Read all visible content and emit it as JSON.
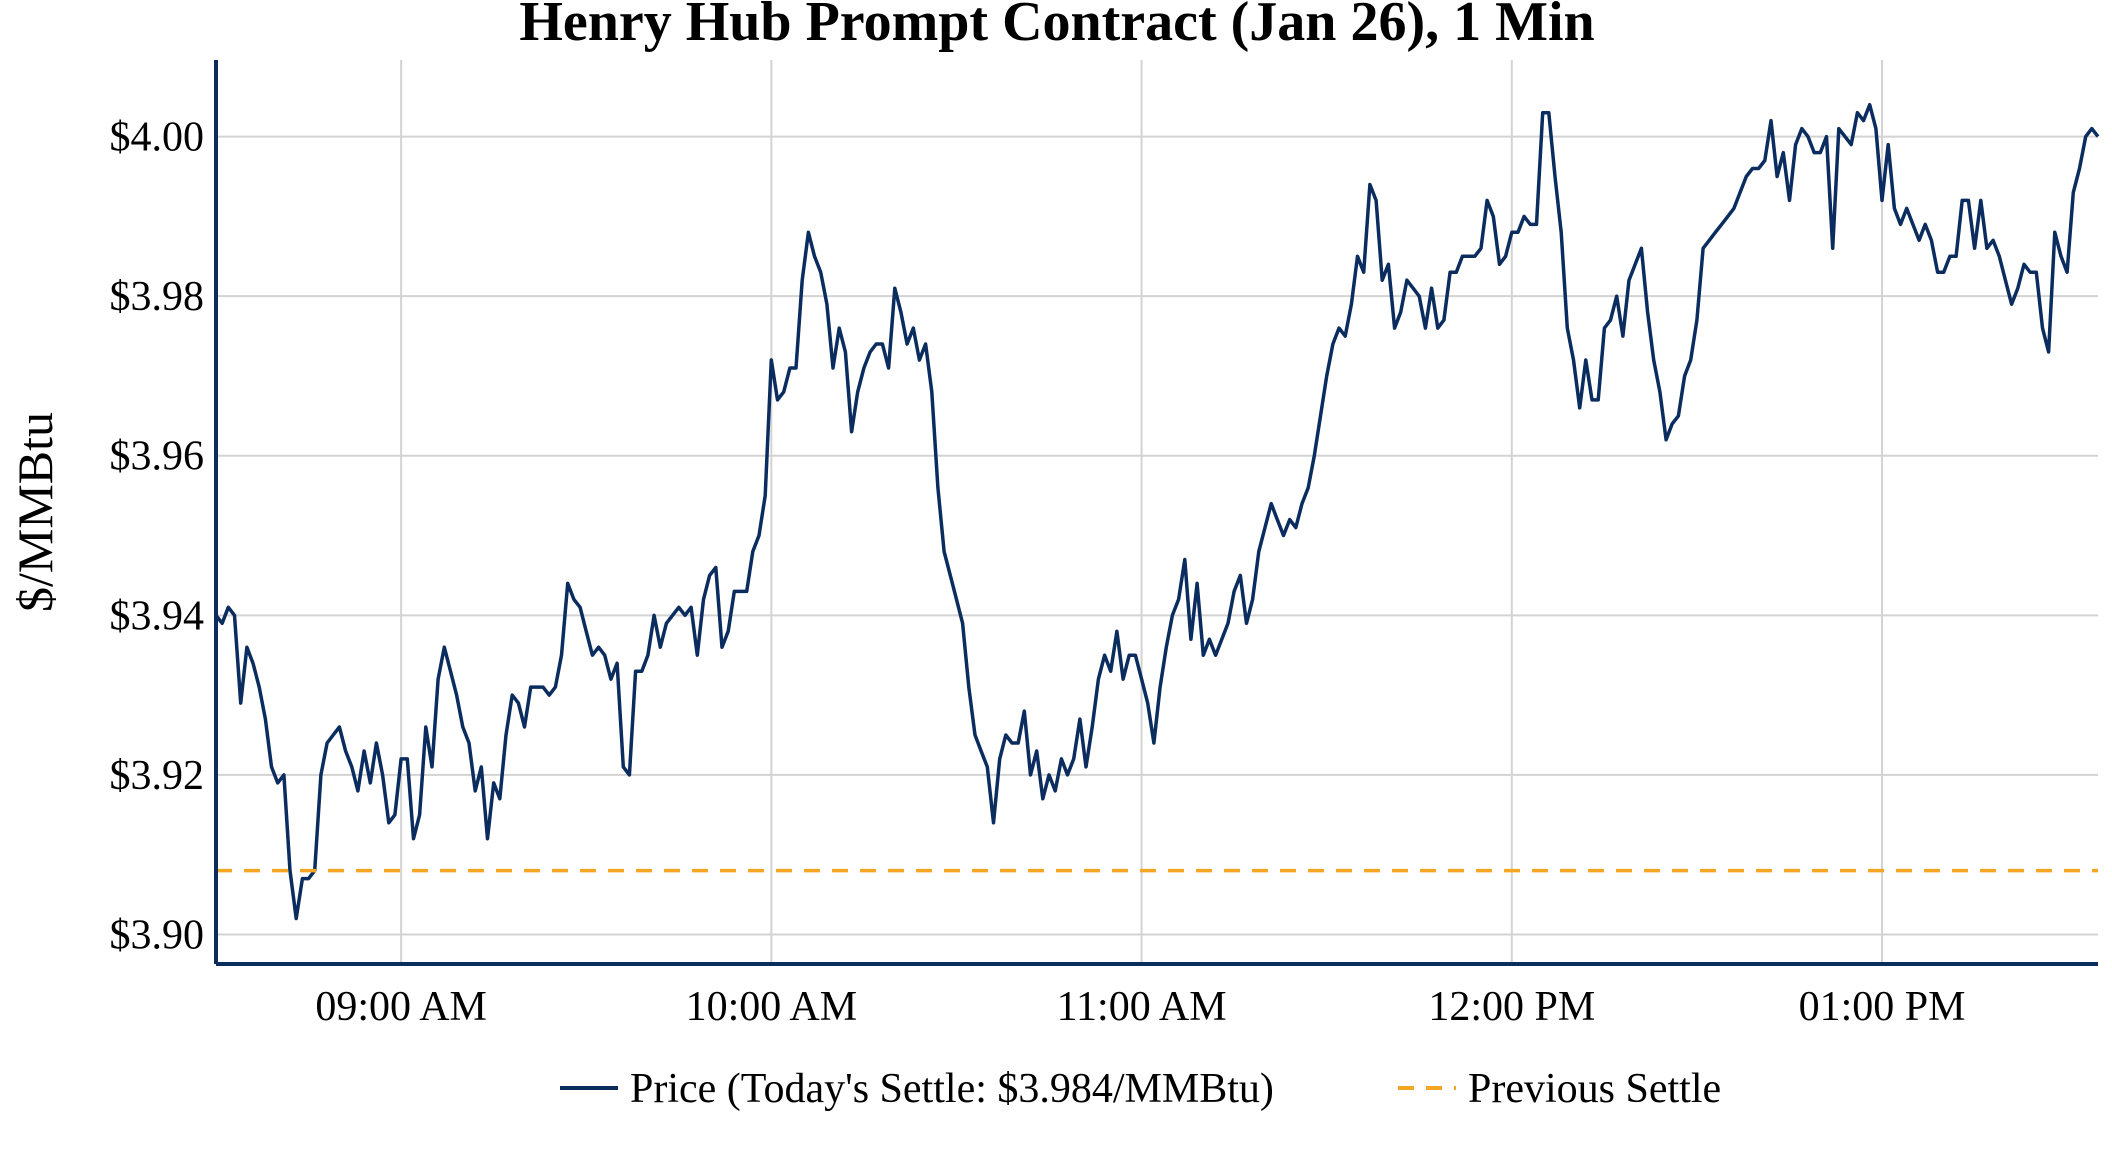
{
  "chart_data": {
    "type": "line",
    "title": "Henry Hub Prompt Contract (Jan 26), 1 Min",
    "xlabel": "",
    "ylabel": "$/MMBtu",
    "x_ticks": [
      "09:00 AM",
      "10:00 AM",
      "11:00 AM",
      "12:00 PM",
      "01:00 PM"
    ],
    "y_ticks": [
      "$3.90",
      "$3.92",
      "$3.94",
      "$3.96",
      "$3.98",
      "$4.00"
    ],
    "y_tick_values": [
      3.9,
      3.92,
      3.94,
      3.96,
      3.98,
      4.0
    ],
    "x_tick_times": [
      "09:00",
      "10:00",
      "11:00",
      "12:00",
      "13:00"
    ],
    "xlim": [
      "08:30",
      "13:35"
    ],
    "ylim": [
      3.8963,
      4.0096
    ],
    "grid": true,
    "legend_position": "bottom-center",
    "series": [
      {
        "name": "Price (Today's Settle: $3.984/MMBtu)",
        "color": "#0b2c5e",
        "style": "solid",
        "x": [
          "08:30",
          "08:31",
          "08:32",
          "08:33",
          "08:34",
          "08:35",
          "08:36",
          "08:37",
          "08:38",
          "08:39",
          "08:40",
          "08:41",
          "08:42",
          "08:43",
          "08:44",
          "08:45",
          "08:46",
          "08:47",
          "08:48",
          "08:49",
          "08:50",
          "08:51",
          "08:52",
          "08:53",
          "08:54",
          "08:55",
          "08:56",
          "08:57",
          "08:58",
          "08:59",
          "09:00",
          "09:01",
          "09:02",
          "09:03",
          "09:04",
          "09:05",
          "09:06",
          "09:07",
          "09:08",
          "09:09",
          "09:10",
          "09:11",
          "09:12",
          "09:13",
          "09:14",
          "09:15",
          "09:16",
          "09:17",
          "09:18",
          "09:19",
          "09:20",
          "09:21",
          "09:22",
          "09:23",
          "09:24",
          "09:25",
          "09:26",
          "09:27",
          "09:28",
          "09:29",
          "09:30",
          "09:31",
          "09:32",
          "09:33",
          "09:34",
          "09:35",
          "09:36",
          "09:37",
          "09:38",
          "09:39",
          "09:40",
          "09:41",
          "09:42",
          "09:43",
          "09:44",
          "09:45",
          "09:46",
          "09:47",
          "09:48",
          "09:49",
          "09:50",
          "09:51",
          "09:52",
          "09:53",
          "09:54",
          "09:55",
          "09:56",
          "09:57",
          "09:58",
          "09:59",
          "10:00",
          "10:01",
          "10:02",
          "10:03",
          "10:04",
          "10:05",
          "10:06",
          "10:07",
          "10:08",
          "10:09",
          "10:10",
          "10:11",
          "10:12",
          "10:13",
          "10:14",
          "10:15",
          "10:16",
          "10:17",
          "10:18",
          "10:19",
          "10:20",
          "10:21",
          "10:22",
          "10:23",
          "10:24",
          "10:25",
          "10:26",
          "10:27",
          "10:28",
          "10:29",
          "10:30",
          "10:31",
          "10:32",
          "10:33",
          "10:34",
          "10:35",
          "10:36",
          "10:37",
          "10:38",
          "10:39",
          "10:40",
          "10:41",
          "10:42",
          "10:43",
          "10:44",
          "10:45",
          "10:46",
          "10:47",
          "10:48",
          "10:49",
          "10:50",
          "10:51",
          "10:52",
          "10:53",
          "10:54",
          "10:55",
          "10:56",
          "10:57",
          "10:58",
          "10:59",
          "11:00",
          "11:01",
          "11:02",
          "11:03",
          "11:04",
          "11:05",
          "11:06",
          "11:07",
          "11:08",
          "11:09",
          "11:10",
          "11:11",
          "11:12",
          "11:13",
          "11:14",
          "11:15",
          "11:16",
          "11:17",
          "11:18",
          "11:19",
          "11:20",
          "11:21",
          "11:22",
          "11:23",
          "11:24",
          "11:25",
          "11:26",
          "11:27",
          "11:28",
          "11:29",
          "11:30",
          "11:31",
          "11:32",
          "11:33",
          "11:34",
          "11:35",
          "11:36",
          "11:37",
          "11:38",
          "11:39",
          "11:40",
          "11:41",
          "11:42",
          "11:43",
          "11:44",
          "11:45",
          "11:46",
          "11:47",
          "11:48",
          "11:49",
          "11:50",
          "11:51",
          "11:52",
          "11:53",
          "11:54",
          "11:55",
          "11:56",
          "11:57",
          "11:58",
          "11:59",
          "12:00",
          "12:01",
          "12:02",
          "12:03",
          "12:04",
          "12:05",
          "12:06",
          "12:07",
          "12:08",
          "12:09",
          "12:10",
          "12:11",
          "12:12",
          "12:13",
          "12:14",
          "12:15",
          "12:16",
          "12:17",
          "12:18",
          "12:19",
          "12:20",
          "12:21",
          "12:22",
          "12:23",
          "12:24",
          "12:25",
          "12:26",
          "12:27",
          "12:28",
          "12:29",
          "12:30",
          "12:31",
          "12:32",
          "12:33",
          "12:34",
          "12:35",
          "12:36",
          "12:37",
          "12:38",
          "12:39",
          "12:40",
          "12:41",
          "12:42",
          "12:43",
          "12:44",
          "12:45",
          "12:46",
          "12:47",
          "12:48",
          "12:49",
          "12:50",
          "12:51",
          "12:52",
          "12:53",
          "12:54",
          "12:55",
          "12:56",
          "12:57",
          "12:58",
          "12:59",
          "13:00",
          "13:01",
          "13:02",
          "13:03",
          "13:04",
          "13:05",
          "13:06",
          "13:07",
          "13:08",
          "13:09",
          "13:10",
          "13:11",
          "13:12",
          "13:13",
          "13:14",
          "13:15",
          "13:16",
          "13:17",
          "13:18",
          "13:19",
          "13:20",
          "13:21",
          "13:22",
          "13:23",
          "13:24",
          "13:25",
          "13:26",
          "13:27",
          "13:28",
          "13:29",
          "13:30",
          "13:31",
          "13:32",
          "13:33",
          "13:34",
          "13:35"
        ],
        "y": [
          3.94,
          3.939,
          3.941,
          3.94,
          3.929,
          3.936,
          3.934,
          3.931,
          3.927,
          3.921,
          3.919,
          3.92,
          3.908,
          3.902,
          3.907,
          3.907,
          3.908,
          3.92,
          3.924,
          3.925,
          3.926,
          3.923,
          3.921,
          3.918,
          3.923,
          3.919,
          3.924,
          3.92,
          3.914,
          3.915,
          3.922,
          3.922,
          3.912,
          3.915,
          3.926,
          3.921,
          3.932,
          3.936,
          3.933,
          3.93,
          3.926,
          3.924,
          3.918,
          3.921,
          3.912,
          3.919,
          3.917,
          3.925,
          3.93,
          3.929,
          3.926,
          3.931,
          3.931,
          3.931,
          3.93,
          3.931,
          3.935,
          3.944,
          3.942,
          3.941,
          3.938,
          3.935,
          3.936,
          3.935,
          3.932,
          3.934,
          3.921,
          3.92,
          3.933,
          3.933,
          3.935,
          3.94,
          3.936,
          3.939,
          3.94,
          3.941,
          3.94,
          3.941,
          3.935,
          3.942,
          3.945,
          3.946,
          3.936,
          3.938,
          3.943,
          3.943,
          3.943,
          3.948,
          3.95,
          3.955,
          3.972,
          3.967,
          3.968,
          3.971,
          3.971,
          3.982,
          3.988,
          3.985,
          3.983,
          3.979,
          3.971,
          3.976,
          3.973,
          3.963,
          3.968,
          3.971,
          3.973,
          3.974,
          3.974,
          3.971,
          3.981,
          3.978,
          3.974,
          3.976,
          3.972,
          3.974,
          3.968,
          3.956,
          3.948,
          3.945,
          3.942,
          3.939,
          3.931,
          3.925,
          3.923,
          3.921,
          3.914,
          3.922,
          3.925,
          3.924,
          3.924,
          3.928,
          3.92,
          3.923,
          3.917,
          3.92,
          3.918,
          3.922,
          3.92,
          3.922,
          3.927,
          3.921,
          3.926,
          3.932,
          3.935,
          3.933,
          3.938,
          3.932,
          3.935,
          3.935,
          3.932,
          3.929,
          3.924,
          3.931,
          3.936,
          3.94,
          3.942,
          3.947,
          3.937,
          3.944,
          3.935,
          3.937,
          3.935,
          3.937,
          3.939,
          3.943,
          3.945,
          3.939,
          3.942,
          3.948,
          3.951,
          3.954,
          3.952,
          3.95,
          3.952,
          3.951,
          3.954,
          3.956,
          3.96,
          3.965,
          3.97,
          3.974,
          3.976,
          3.975,
          3.979,
          3.985,
          3.983,
          3.994,
          3.992,
          3.982,
          3.984,
          3.976,
          3.978,
          3.982,
          3.981,
          3.98,
          3.976,
          3.981,
          3.976,
          3.977,
          3.983,
          3.983,
          3.985,
          3.985,
          3.985,
          3.986,
          3.992,
          3.99,
          3.984,
          3.985,
          3.988,
          3.988,
          3.99,
          3.989,
          3.989,
          4.003,
          4.003,
          3.995,
          3.988,
          3.976,
          3.972,
          3.966,
          3.972,
          3.967,
          3.967,
          3.976,
          3.977,
          3.98,
          3.975,
          3.982,
          3.984,
          3.986,
          3.978,
          3.972,
          3.968,
          3.962,
          3.964,
          3.965,
          3.97,
          3.972,
          3.977,
          3.986,
          3.987,
          3.988,
          3.989,
          3.99,
          3.991,
          3.993,
          3.995,
          3.996,
          3.996,
          3.997,
          4.002,
          3.995,
          3.998,
          3.992,
          3.999,
          4.001,
          4.0,
          3.998,
          3.998,
          4.0,
          3.986,
          4.001,
          4.0,
          3.999,
          4.003,
          4.002,
          4.004,
          4.001,
          3.992,
          3.999,
          3.991,
          3.989,
          3.991,
          3.989,
          3.987,
          3.989,
          3.987,
          3.983,
          3.983,
          3.985,
          3.985,
          3.992,
          3.992,
          3.986,
          3.992,
          3.986,
          3.987,
          3.985,
          3.982,
          3.979,
          3.981,
          3.984,
          3.983,
          3.983,
          3.976,
          3.973,
          3.988,
          3.985,
          3.983,
          3.993,
          3.996,
          4.0,
          4.001,
          4.0
        ]
      },
      {
        "name": "Previous Settle",
        "color": "#f5a623",
        "style": "dashed",
        "x": [
          "08:30",
          "13:35"
        ],
        "y": [
          3.908,
          3.908
        ]
      }
    ]
  }
}
